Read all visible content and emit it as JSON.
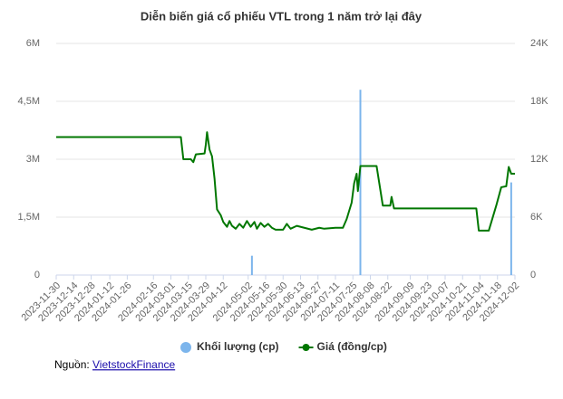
{
  "chart_data": {
    "type": "bar-line",
    "title": "Diễn biến giá cổ phiếu VTL trong 1 năm trở lại đây",
    "xlim": [
      "2023-11-30",
      "2024-12-02"
    ],
    "xticks": [
      "2023-11-30",
      "2023-12-14",
      "2023-12-28",
      "2024-01-12",
      "2024-01-26",
      "2024-02-16",
      "2024-03-01",
      "2024-03-15",
      "2024-03-29",
      "2024-04-12",
      "2024-05-02",
      "2024-05-16",
      "2024-05-30",
      "2024-06-13",
      "2024-06-27",
      "2024-07-11",
      "2024-07-25",
      "2024-08-08",
      "2024-08-22",
      "2024-09-09",
      "2024-09-23",
      "2024-10-07",
      "2024-10-21",
      "2024-11-04",
      "2024-11-18",
      "2024-12-02"
    ],
    "ylim": [
      0,
      6000000
    ],
    "yticks": [
      0,
      {
        "value": 1500000,
        "label": "1,5M"
      },
      {
        "value": 3000000,
        "label": "3M"
      },
      {
        "value": 4500000,
        "label": "4,5M"
      },
      {
        "value": 6000000,
        "label": "6M"
      }
    ],
    "y2lim": [
      0,
      24000
    ],
    "y2ticks": [
      0,
      {
        "value": 6000,
        "label": "6K"
      },
      {
        "value": 12000,
        "label": "12K"
      },
      {
        "value": 18000,
        "label": "18K"
      },
      {
        "value": 24000,
        "label": "24K"
      }
    ],
    "grid": true,
    "series": [
      {
        "name": "Khối lượng (cp)",
        "color": "#7cb5ec",
        "type": "bar",
        "x": [
          "2024-05-05",
          "2024-07-31",
          "2024-11-29"
        ],
        "values": [
          500000,
          4800000,
          2400000
        ]
      },
      {
        "name": "Giá (đồng/cp)",
        "color": "#007700",
        "type": "line",
        "axis": "y2",
        "x": [
          "2023-11-30",
          "2024-03-09",
          "2024-03-11",
          "2024-03-17",
          "2024-03-19",
          "2024-03-21",
          "2024-03-28",
          "2024-03-29",
          "2024-03-30",
          "2024-04-01",
          "2024-04-03",
          "2024-04-05",
          "2024-04-07",
          "2024-04-10",
          "2024-04-12",
          "2024-04-15",
          "2024-04-17",
          "2024-04-19",
          "2024-04-22",
          "2024-04-25",
          "2024-04-28",
          "2024-05-01",
          "2024-05-04",
          "2024-05-07",
          "2024-05-09",
          "2024-05-12",
          "2024-05-15",
          "2024-05-18",
          "2024-05-21",
          "2024-05-24",
          "2024-05-30",
          "2024-06-02",
          "2024-06-05",
          "2024-06-10",
          "2024-06-16",
          "2024-06-22",
          "2024-06-28",
          "2024-07-02",
          "2024-07-11",
          "2024-07-17",
          "2024-07-20",
          "2024-07-24",
          "2024-07-26",
          "2024-07-28",
          "2024-07-29",
          "2024-07-31",
          "2024-08-13",
          "2024-08-18",
          "2024-08-24",
          "2024-08-25",
          "2024-08-27",
          "2024-11-01",
          "2024-11-03",
          "2024-11-11",
          "2024-11-17",
          "2024-11-21",
          "2024-11-25",
          "2024-11-27",
          "2024-11-29",
          "2024-12-02"
        ],
        "values": [
          14300,
          14300,
          12000,
          12000,
          11700,
          12500,
          12600,
          13500,
          14800,
          13000,
          12300,
          10000,
          6800,
          6200,
          5500,
          5000,
          5600,
          5100,
          4800,
          5300,
          4900,
          5600,
          5000,
          5500,
          4800,
          5400,
          5000,
          5300,
          4900,
          4700,
          4700,
          5300,
          4800,
          5100,
          4900,
          4700,
          4900,
          4800,
          4900,
          4900,
          5800,
          7500,
          9500,
          10500,
          8700,
          11300,
          11300,
          7200,
          7200,
          8100,
          6900,
          6900,
          4600,
          4600,
          7200,
          9100,
          9200,
          11200,
          10500,
          10500
        ]
      }
    ]
  },
  "source_label": "Nguồn:",
  "source_link": "VietstockFinance"
}
